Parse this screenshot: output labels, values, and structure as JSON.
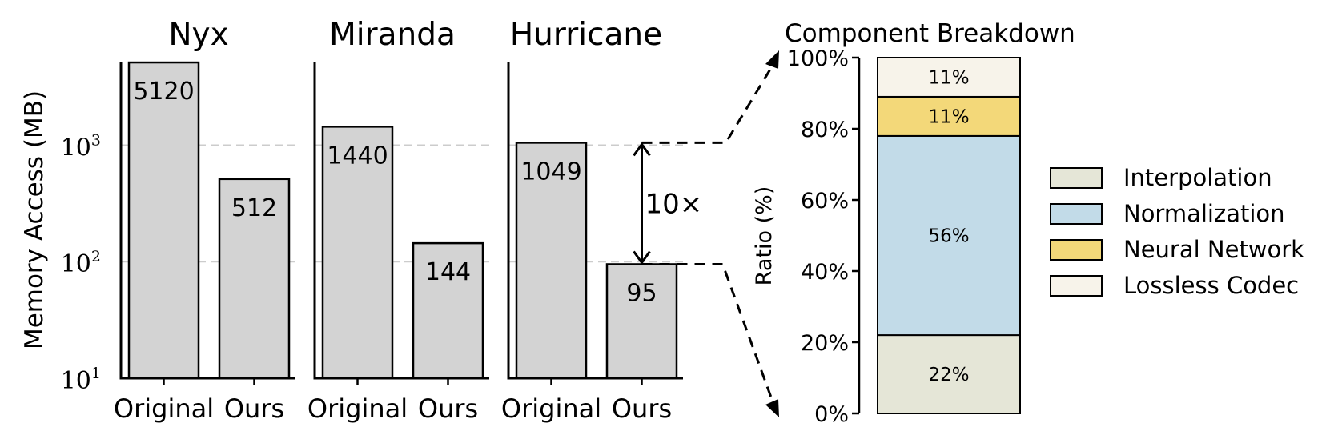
{
  "chart_data": [
    {
      "type": "bar",
      "ylabel": "Memory Access (MB)",
      "yscale": "log",
      "ylim": [
        10,
        6000
      ],
      "ytick_labels": [
        {
          "base": "10",
          "exp": "1",
          "value": 10
        },
        {
          "base": "10",
          "exp": "2",
          "value": 100
        },
        {
          "base": "10",
          "exp": "3",
          "value": 1000
        }
      ],
      "grid": "horizontal dashed at 10^2 and 10^3",
      "categories": [
        "Original",
        "Ours"
      ],
      "panels": [
        {
          "title": "Nyx",
          "values": [
            5120,
            512
          ],
          "labels": [
            "5120",
            "512"
          ]
        },
        {
          "title": "Miranda",
          "values": [
            1440,
            144
          ],
          "labels": [
            "1440",
            "144"
          ]
        },
        {
          "title": "Hurricane",
          "values": [
            1049,
            95
          ],
          "labels": [
            "1049",
            "95"
          ]
        }
      ],
      "annotation": "10×",
      "bar_color": "#d3d3d3"
    },
    {
      "type": "bar",
      "stacked": true,
      "title": "Component Breakdown",
      "ylabel": "Ratio (%)",
      "ylim": [
        0,
        100
      ],
      "ytick_labels": [
        "0%",
        "20%",
        "40%",
        "60%",
        "80%",
        "100%"
      ],
      "segments": [
        {
          "name": "Interpolation",
          "value": 22,
          "label": "22%",
          "color": "#e5e6d7"
        },
        {
          "name": "Normalization",
          "value": 56,
          "label": "56%",
          "color": "#c2dbe8"
        },
        {
          "name": "Neural Network",
          "value": 11,
          "label": "11%",
          "color": "#f3d879"
        },
        {
          "name": "Lossless Codec",
          "value": 11,
          "label": "11%",
          "color": "#f7f3ea"
        }
      ],
      "legend_position": "right"
    }
  ]
}
